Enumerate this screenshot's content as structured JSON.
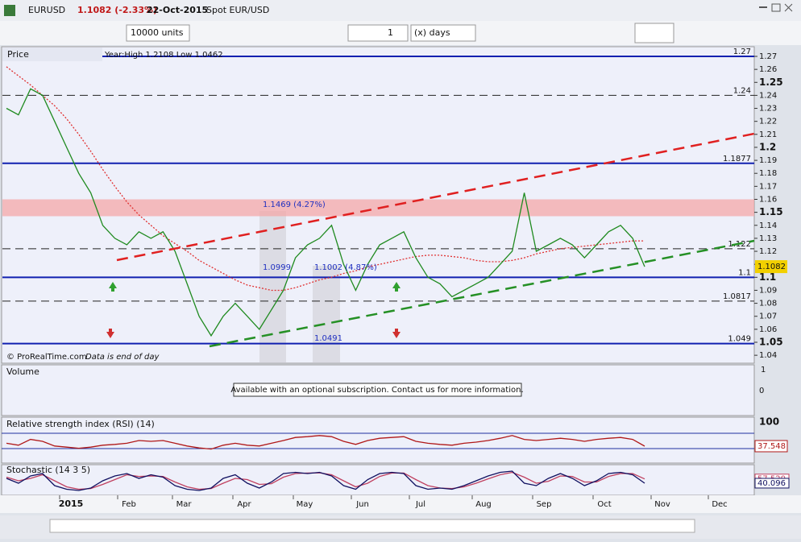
{
  "title_bar": {
    "symbol": "EURUSD",
    "change": "1.1082 (-2.33%)",
    "date": "22-Oct-2015",
    "description": "Spot EUR/USD"
  },
  "toolbar": {
    "units": "10000 units",
    "count": "1",
    "period": "(x) days"
  },
  "price_panel": {
    "label": "Price",
    "stats": "Year:High 1.2108 Low 1.0462",
    "footer": "© ProRealTime.com",
    "footer_note": "Data is end of day",
    "ylim": [
      1.04,
      1.275
    ],
    "yticks": [
      1.04,
      1.05,
      1.06,
      1.07,
      1.08,
      1.09,
      1.1,
      1.11,
      1.12,
      1.13,
      1.14,
      1.15,
      1.16,
      1.17,
      1.18,
      1.19,
      1.2,
      1.21,
      1.22,
      1.23,
      1.24,
      1.25,
      1.26,
      1.27
    ],
    "levels": [
      {
        "value": 1.27,
        "style": "solid"
      },
      {
        "value": 1.24,
        "style": "dashed"
      },
      {
        "value": 1.1877,
        "style": "solid"
      },
      {
        "value": 1.122,
        "style": "dashed"
      },
      {
        "value": 1.1,
        "style": "solid"
      },
      {
        "value": 1.0817,
        "style": "dashed"
      },
      {
        "value": 1.049,
        "style": "solid"
      }
    ],
    "zone": {
      "from": 1.147,
      "to": 1.16,
      "color": "#f4a8a8"
    },
    "annotations": [
      "1.1469 (4.27%)",
      "1.0999",
      "1.1002 (4.87%)",
      "1.0491"
    ],
    "last_price": 1.1082,
    "close": {
      "color": "#1f8a1f",
      "values": [
        1.23,
        1.225,
        1.245,
        1.24,
        1.22,
        1.2,
        1.18,
        1.165,
        1.14,
        1.13,
        1.125,
        1.135,
        1.13,
        1.135,
        1.12,
        1.095,
        1.07,
        1.055,
        1.07,
        1.08,
        1.07,
        1.06,
        1.075,
        1.09,
        1.115,
        1.125,
        1.13,
        1.14,
        1.11,
        1.09,
        1.11,
        1.125,
        1.13,
        1.135,
        1.115,
        1.1,
        1.095,
        1.085,
        1.09,
        1.095,
        1.1,
        1.11,
        1.12,
        1.165,
        1.12,
        1.125,
        1.13,
        1.125,
        1.115,
        1.125,
        1.135,
        1.14,
        1.13,
        1.1082
      ]
    },
    "moving_average": {
      "color": "#e03030",
      "values": [
        1.262,
        1.255,
        1.248,
        1.24,
        1.232,
        1.222,
        1.21,
        1.197,
        1.183,
        1.17,
        1.158,
        1.148,
        1.14,
        1.132,
        1.126,
        1.12,
        1.113,
        1.108,
        1.103,
        1.098,
        1.094,
        1.092,
        1.09,
        1.09,
        1.092,
        1.095,
        1.098,
        1.1,
        1.103,
        1.105,
        1.108,
        1.11,
        1.112,
        1.114,
        1.116,
        1.117,
        1.117,
        1.116,
        1.115,
        1.113,
        1.112,
        1.112,
        1.113,
        1.115,
        1.118,
        1.12,
        1.122,
        1.123,
        1.124,
        1.125,
        1.126,
        1.127,
        1.128,
        1.128
      ]
    }
  },
  "volume_panel": {
    "label": "Volume",
    "notice": "Available with an optional subscription. Contact us for more information.",
    "yticks": [
      1,
      0
    ]
  },
  "rsi_panel": {
    "label": "Relative strength index (RSI) (14)",
    "ytick": 100,
    "color": "#b01818",
    "values": [
      45,
      40,
      55,
      50,
      38,
      35,
      32,
      35,
      40,
      42,
      45,
      52,
      50,
      52,
      45,
      38,
      33,
      30,
      40,
      45,
      40,
      38,
      45,
      52,
      60,
      62,
      65,
      62,
      50,
      42,
      52,
      58,
      60,
      62,
      50,
      45,
      42,
      40,
      45,
      48,
      52,
      58,
      65,
      55,
      52,
      55,
      58,
      55,
      50,
      55,
      58,
      60,
      55,
      37.548
    ]
  },
  "stochastic_panel": {
    "label": "Stochastic (14 3 5)",
    "k": {
      "color": "#101060",
      "values": [
        60,
        40,
        70,
        80,
        30,
        15,
        10,
        20,
        50,
        70,
        80,
        60,
        75,
        65,
        30,
        15,
        10,
        20,
        60,
        75,
        40,
        20,
        45,
        80,
        85,
        80,
        85,
        70,
        30,
        15,
        55,
        80,
        85,
        80,
        30,
        15,
        20,
        15,
        30,
        50,
        70,
        85,
        90,
        40,
        30,
        60,
        80,
        60,
        30,
        50,
        80,
        85,
        75,
        40.096
      ],
      "tag": {
        "value": 40.096,
        "label": "40.096"
      }
    },
    "d": {
      "color": "#c04060",
      "values": [
        65,
        50,
        60,
        75,
        50,
        25,
        15,
        18,
        35,
        55,
        75,
        68,
        70,
        68,
        45,
        25,
        15,
        18,
        40,
        60,
        55,
        35,
        38,
        65,
        80,
        82,
        83,
        75,
        50,
        25,
        40,
        68,
        82,
        82,
        55,
        30,
        20,
        18,
        25,
        40,
        58,
        75,
        85,
        65,
        40,
        48,
        70,
        68,
        45,
        45,
        68,
        80,
        80,
        57.52
      ],
      "tag": {
        "value": 57.52,
        "label": "57.520"
      }
    }
  },
  "date_axis": [
    "2015",
    "Feb",
    "Mar",
    "Apr",
    "May",
    "Jun",
    "Jul",
    "Aug",
    "Sep",
    "Oct",
    "Nov",
    "Dec"
  ]
}
